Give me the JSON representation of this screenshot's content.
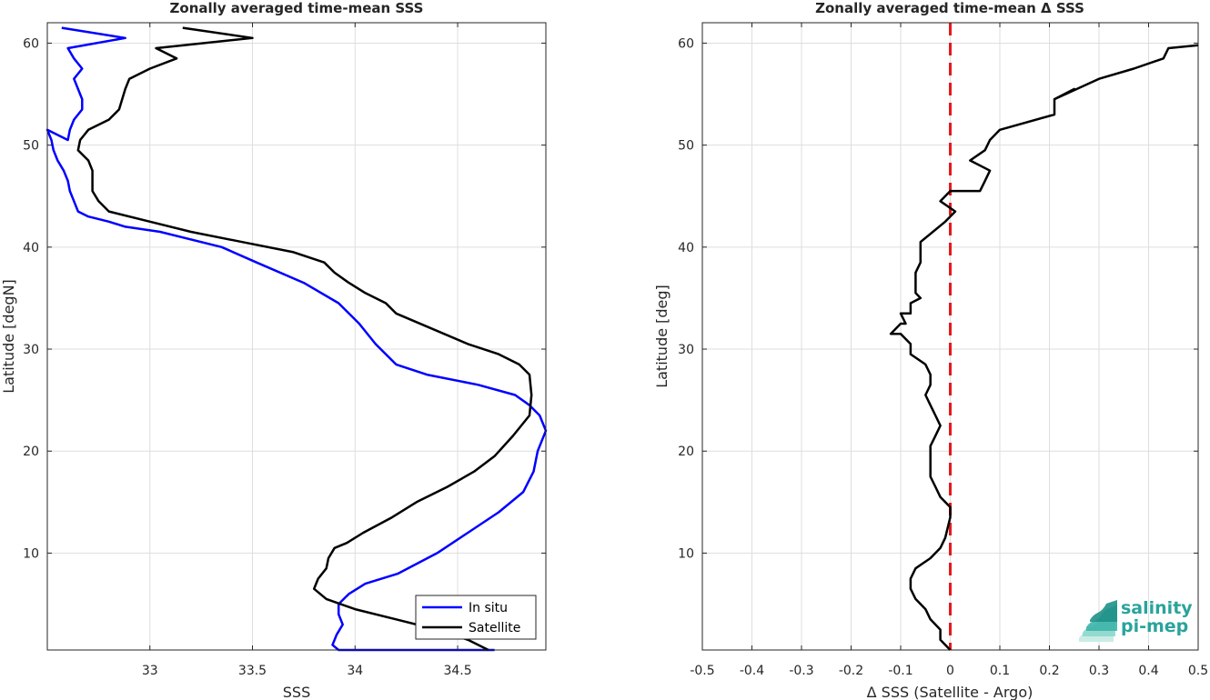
{
  "chart_data": [
    {
      "type": "line",
      "title": "Zonally averaged time-mean SSS",
      "xlabel": "SSS",
      "ylabel": "Latitude [degN]",
      "xlim": [
        32.5,
        34.93
      ],
      "ylim": [
        0.5,
        62
      ],
      "xticks": [
        "33",
        "33.5",
        "34",
        "34.5"
      ],
      "yticks": [
        "10",
        "20",
        "30",
        "40",
        "50",
        "60"
      ],
      "grid": true,
      "legend_position": "bottom-right",
      "series": [
        {
          "name": "In situ",
          "color": "#0000ff",
          "x": [
            32.57,
            32.88,
            32.6,
            32.63,
            32.67,
            32.63,
            32.65,
            32.67,
            32.67,
            32.63,
            32.61,
            32.6,
            32.5,
            32.52,
            32.53,
            32.55,
            32.58,
            32.6,
            32.61,
            32.63,
            32.65,
            32.7,
            32.8,
            32.88,
            33.05,
            33.35,
            33.52,
            33.75,
            33.92,
            34.02,
            34.1,
            34.2,
            34.35,
            34.6,
            34.78,
            34.85,
            34.9,
            34.93,
            34.89,
            34.87,
            34.82,
            34.7,
            34.55,
            34.4,
            34.21,
            34.05,
            33.97,
            33.92,
            33.92,
            33.94,
            33.91,
            33.89,
            33.92,
            34.02,
            34.2,
            34.4,
            34.55,
            34.68
          ],
          "y": [
            61.5,
            60.5,
            59.5,
            58.5,
            57.5,
            56.5,
            55.5,
            54.5,
            53.5,
            52.5,
            51.5,
            50.5,
            51.5,
            50.5,
            49.5,
            48.5,
            47.5,
            46.5,
            45.5,
            44.5,
            43.5,
            43,
            42.5,
            42,
            41.5,
            40,
            38.5,
            36.5,
            34.5,
            32.5,
            30.5,
            28.5,
            27.5,
            26.5,
            25.5,
            24.5,
            23.5,
            22,
            20,
            18,
            16,
            14,
            12,
            10,
            8,
            7,
            6,
            5,
            4,
            3,
            2,
            1,
            0.5,
            0.5,
            0.5,
            0.5,
            0.5,
            0.5
          ]
        },
        {
          "name": "Satellite",
          "color": "#000000",
          "x": [
            33.16,
            33.5,
            33.03,
            33.13,
            33.0,
            32.9,
            32.88,
            32.85,
            32.8,
            32.7,
            32.66,
            32.65,
            32.7,
            32.72,
            32.72,
            32.75,
            32.8,
            33.0,
            33.2,
            33.45,
            33.7,
            33.85,
            33.9,
            33.97,
            34.05,
            34.15,
            34.2,
            34.55,
            34.7,
            34.8,
            34.85,
            34.86,
            34.85,
            34.77,
            34.68,
            34.58,
            34.45,
            34.3,
            34.18,
            34.04,
            33.96,
            33.9,
            33.87,
            33.86,
            33.84,
            33.82,
            33.8,
            33.86,
            34.0,
            34.2,
            34.4,
            34.55,
            34.65
          ],
          "y": [
            61.5,
            60.5,
            59.5,
            58.5,
            57.5,
            56.5,
            55.5,
            53.5,
            52.5,
            51.5,
            50.5,
            49.5,
            48.5,
            47.5,
            45.5,
            44.5,
            43.5,
            42.5,
            41.5,
            40.5,
            39.5,
            38.5,
            37.5,
            36.5,
            35.5,
            34.5,
            33.5,
            30.5,
            29.5,
            28.5,
            27.5,
            25.5,
            23.5,
            21.5,
            19.5,
            18,
            16.5,
            15,
            13.5,
            12,
            11,
            10.5,
            9.5,
            8.5,
            8,
            7.5,
            6.5,
            5.5,
            4.5,
            3.5,
            2.5,
            1.5,
            0.5
          ]
        }
      ]
    },
    {
      "type": "line",
      "title": "Zonally averaged time-mean Δ SSS",
      "xlabel": "Δ SSS (Satellite - Argo)",
      "ylabel": "Latitude [deg]",
      "xlim": [
        -0.5,
        0.5
      ],
      "ylim": [
        0.5,
        62
      ],
      "xticks": [
        "-0.5",
        "-0.4",
        "-0.3",
        "-0.2",
        "-0.1",
        "0",
        "0.1",
        "0.2",
        "0.3",
        "0.4",
        "0.5"
      ],
      "yticks": [
        "10",
        "20",
        "30",
        "40",
        "50",
        "60"
      ],
      "grid": true,
      "reference_line": {
        "x": 0,
        "color": "#e41a1c",
        "style": "dashed"
      },
      "series": [
        {
          "name": "",
          "color": "#000000",
          "x": [
            0.5,
            0.44,
            0.43,
            0.37,
            0.3,
            0.21,
            0.25,
            0.21,
            0.21,
            0.1,
            0.08,
            0.07,
            0.04,
            0.08,
            0.07,
            0.06,
            0.0,
            -0.01,
            -0.02,
            0.01,
            -0.01,
            -0.06,
            -0.06,
            -0.06,
            -0.07,
            -0.07,
            -0.07,
            -0.06,
            -0.08,
            -0.08,
            -0.1,
            -0.09,
            -0.1,
            -0.12,
            -0.1,
            -0.08,
            -0.08,
            -0.05,
            -0.04,
            -0.04,
            -0.05,
            -0.04,
            -0.03,
            -0.02,
            -0.03,
            -0.04,
            -0.04,
            -0.04,
            -0.04,
            -0.03,
            -0.02,
            0.0,
            0.0,
            -0.01,
            -0.02,
            -0.04,
            -0.07,
            -0.08,
            -0.08,
            -0.07,
            -0.05,
            -0.04,
            -0.02,
            -0.02,
            0.0
          ],
          "y": [
            59.8,
            59.5,
            58.5,
            57.5,
            56.5,
            54.5,
            55.5,
            54.5,
            53,
            51.5,
            50.5,
            49.5,
            48.5,
            47.5,
            46.5,
            45.5,
            45.5,
            45,
            44.5,
            43.5,
            42.5,
            40.5,
            39.5,
            38.5,
            37.5,
            36.5,
            35.5,
            35,
            34.5,
            33.5,
            33.5,
            32.5,
            32.5,
            31.5,
            31.5,
            30.5,
            29.5,
            28.5,
            27.5,
            26.5,
            25.5,
            24.5,
            23.5,
            22.5,
            21.5,
            20.5,
            19.5,
            18.5,
            17.5,
            16.5,
            15.5,
            14.5,
            13.5,
            11.5,
            10.5,
            9.5,
            8.5,
            7.5,
            6.5,
            5.5,
            4.5,
            3.5,
            2.5,
            1.5,
            0.5
          ]
        }
      ]
    }
  ],
  "logo": {
    "line1": "salinity",
    "line2": "pi-mep"
  }
}
